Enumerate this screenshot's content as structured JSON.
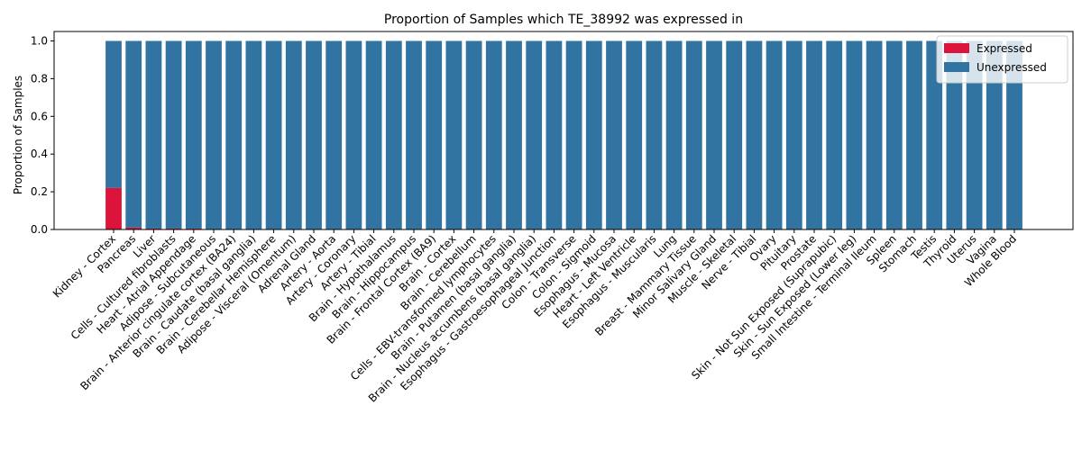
{
  "chart_data": {
    "type": "bar",
    "stacked": true,
    "title": "Proportion of Samples which TE_38992 was expressed in",
    "xlabel": "",
    "ylabel": "Proportion of Samples",
    "ylim": [
      0,
      1.05
    ],
    "yticks": [
      "0.0",
      "0.2",
      "0.4",
      "0.6",
      "0.8",
      "1.0"
    ],
    "grid": false,
    "legend_position": "top-right",
    "colors": {
      "expressed": "#dc143c",
      "unexpressed": "#3274a1"
    },
    "categories": [
      "Kidney - Cortex",
      "Pancreas",
      "Liver",
      "Cells - Cultured fibroblasts",
      "Heart - Atrial Appendage",
      "Adipose - Subcutaneous",
      "Brain - Anterior cingulate cortex (BA24)",
      "Brain - Caudate (basal ganglia)",
      "Brain - Cerebellar Hemisphere",
      "Adipose - Visceral (Omentum)",
      "Adrenal Gland",
      "Artery - Aorta",
      "Artery - Coronary",
      "Artery - Tibial",
      "Brain - Hypothalamus",
      "Brain - Hippocampus",
      "Brain - Frontal Cortex (BA9)",
      "Brain - Cortex",
      "Brain - Cerebellum",
      "Cells - EBV-transformed lymphocytes",
      "Brain - Putamen (basal ganglia)",
      "Brain - Nucleus accumbens (basal ganglia)",
      "Esophagus - Gastroesophageal Junction",
      "Colon - Transverse",
      "Colon - Sigmoid",
      "Esophagus - Mucosa",
      "Heart - Left Ventricle",
      "Esophagus - Muscularis",
      "Lung",
      "Breast - Mammary Tissue",
      "Minor Salivary Gland",
      "Muscle - Skeletal",
      "Nerve - Tibial",
      "Ovary",
      "Pituitary",
      "Prostate",
      "Skin - Not Sun Exposed (Suprapubic)",
      "Skin - Sun Exposed (Lower leg)",
      "Small Intestine - Terminal Ileum",
      "Spleen",
      "Stomach",
      "Testis",
      "Thyroid",
      "Uterus",
      "Vagina",
      "Whole Blood"
    ],
    "series": [
      {
        "name": "Expressed",
        "values": [
          0.22,
          0.01,
          0.005,
          0.005,
          0.005,
          0,
          0,
          0,
          0,
          0,
          0,
          0,
          0,
          0,
          0,
          0,
          0,
          0,
          0,
          0,
          0,
          0,
          0,
          0,
          0,
          0,
          0,
          0,
          0,
          0,
          0,
          0,
          0,
          0,
          0,
          0,
          0,
          0,
          0,
          0,
          0,
          0,
          0,
          0,
          0,
          0
        ]
      },
      {
        "name": "Unexpressed",
        "values": [
          0.78,
          0.99,
          0.995,
          0.995,
          0.995,
          1,
          1,
          1,
          1,
          1,
          1,
          1,
          1,
          1,
          1,
          1,
          1,
          1,
          1,
          1,
          1,
          1,
          1,
          1,
          1,
          1,
          1,
          1,
          1,
          1,
          1,
          1,
          1,
          1,
          1,
          1,
          1,
          1,
          1,
          1,
          1,
          1,
          1,
          1,
          1,
          1
        ]
      }
    ]
  }
}
